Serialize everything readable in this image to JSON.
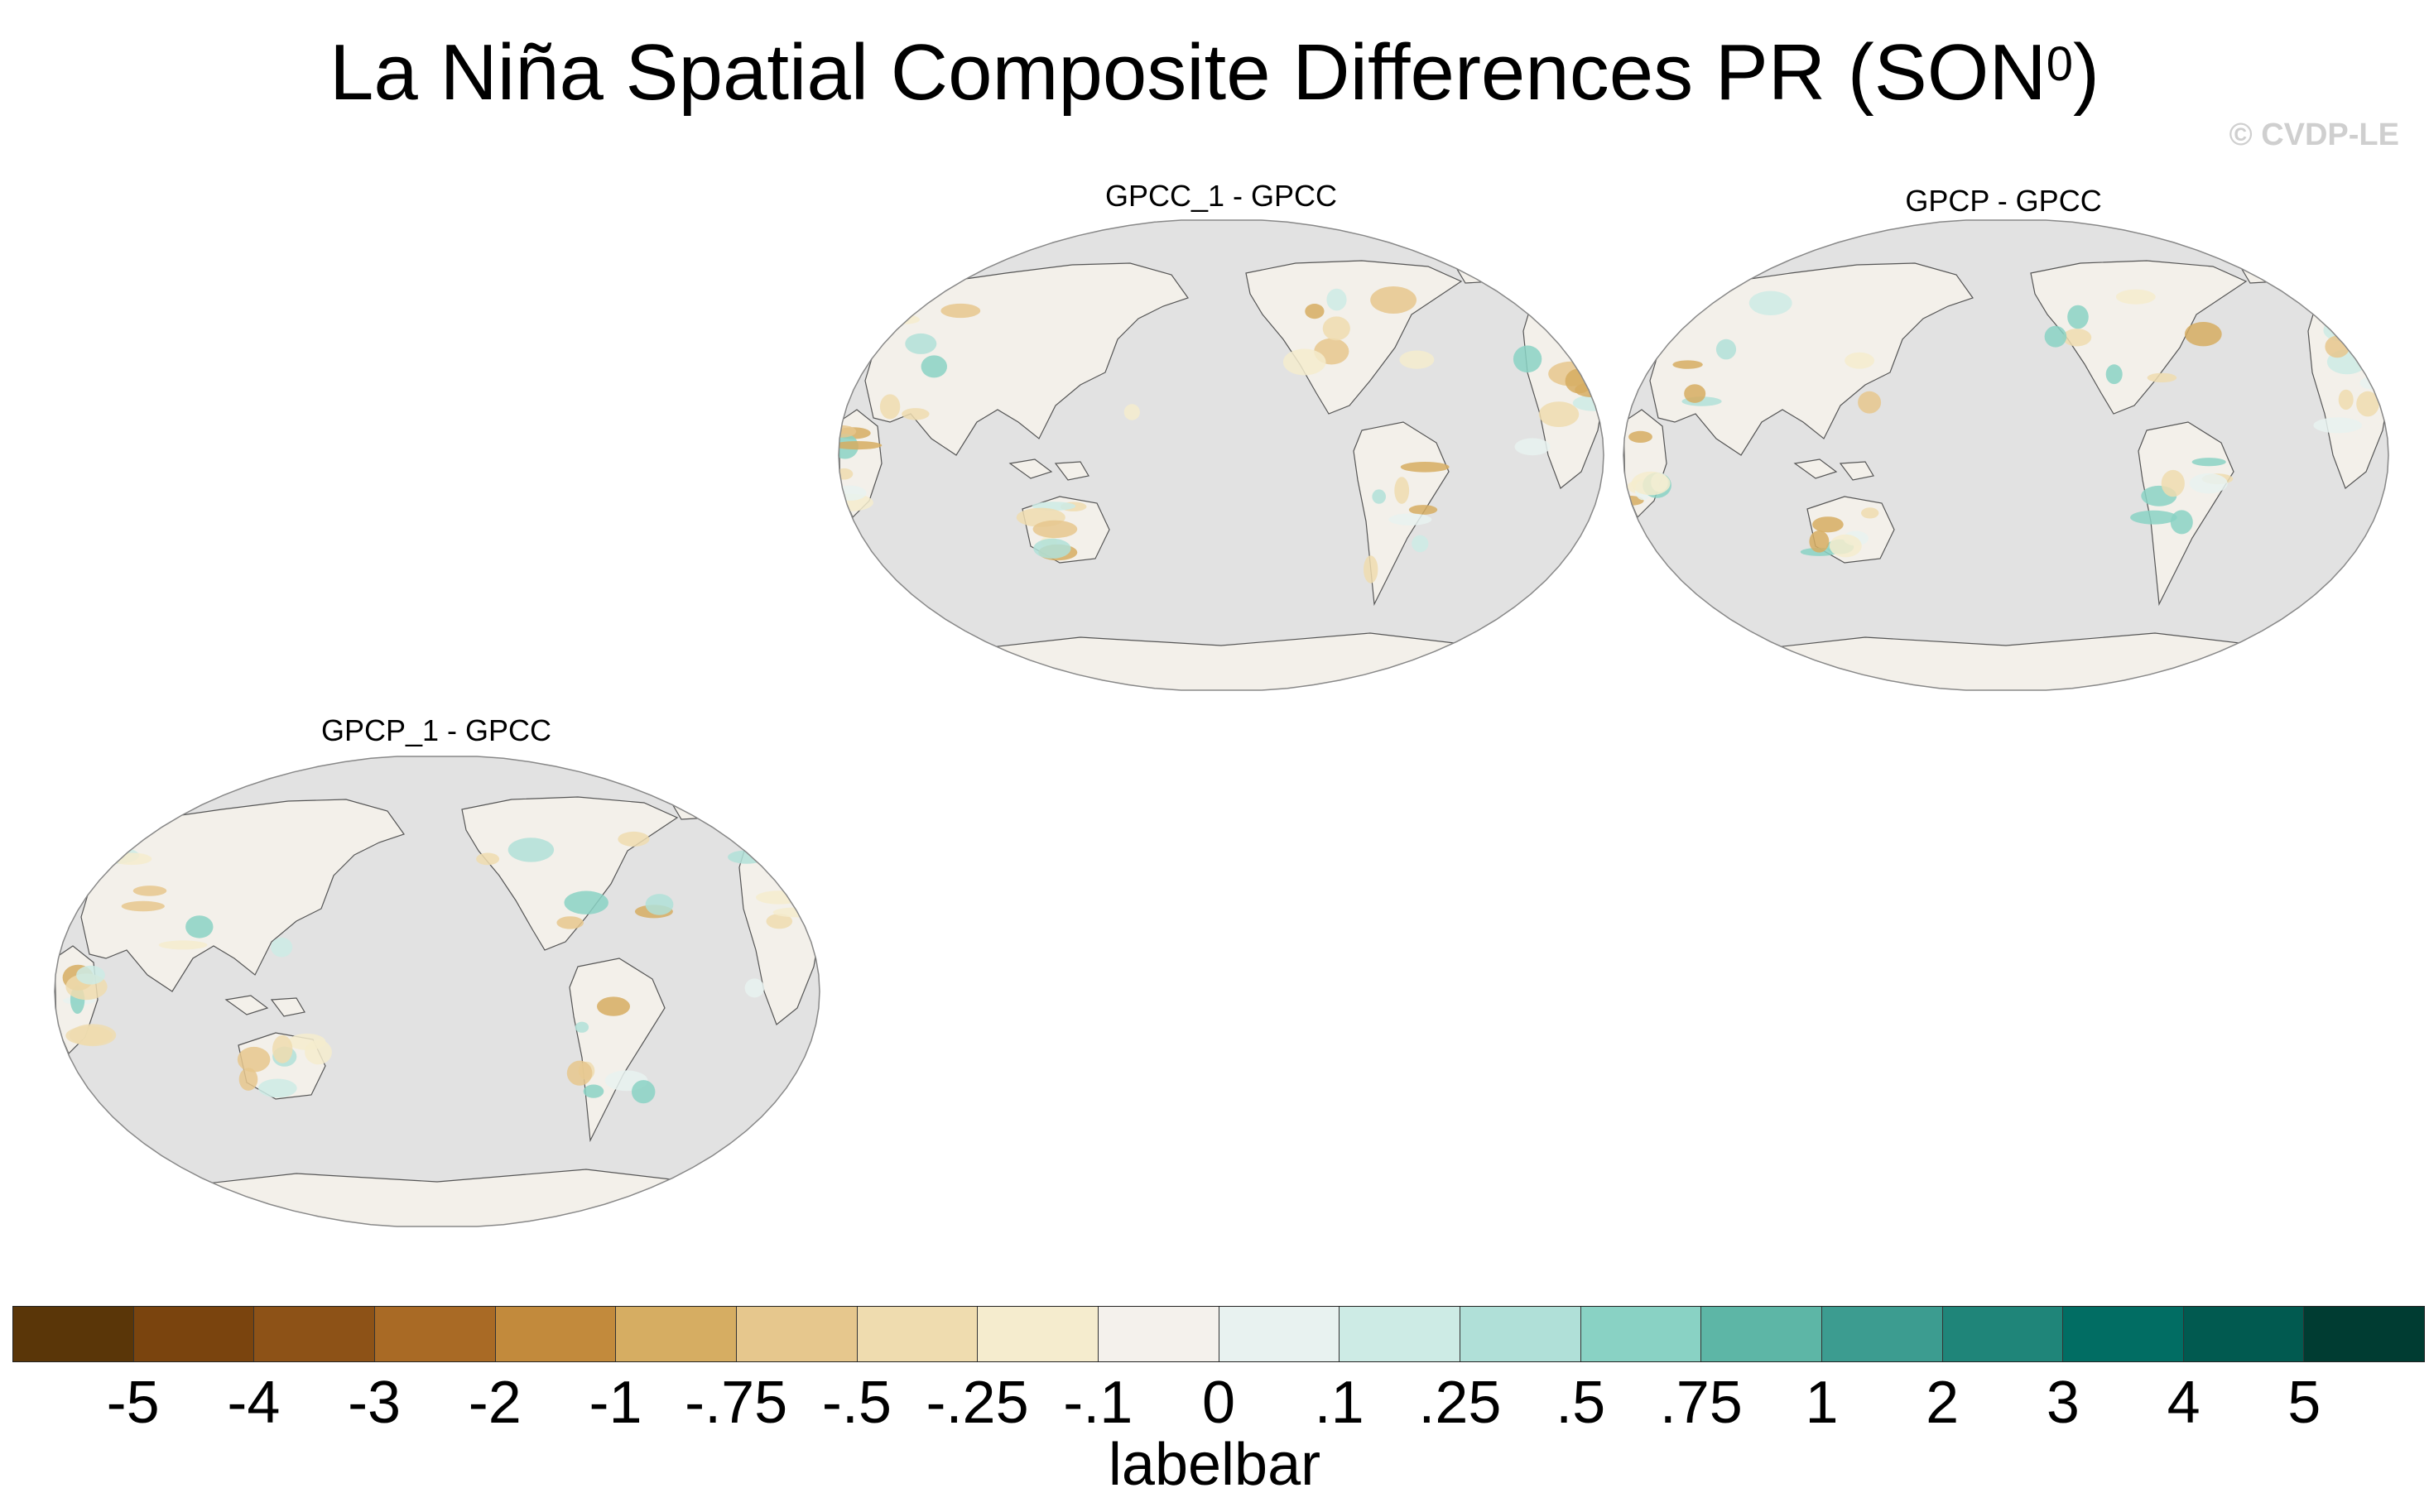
{
  "title": {
    "main": "La Niña Spatial Composite Differences PR (SON",
    "superscript": "0",
    "close": ")"
  },
  "watermark": "© CVDP-LE",
  "panels": [
    {
      "title": "GPCC_1 - GPCC"
    },
    {
      "title": "GPCP - GPCC"
    },
    {
      "title": "GPCP_1 - GPCC"
    }
  ],
  "colors": {
    "ocean": "#e2e2e2",
    "land": "#f3f0ea",
    "coast": "#555555",
    "map_border": "#888888"
  },
  "labelbar": {
    "title": "labelbar",
    "colors": [
      "#5a3608",
      "#7a440e",
      "#8d5217",
      "#a96a25",
      "#c28a3c",
      "#d6ad62",
      "#e6c78d",
      "#efdcaf",
      "#f5ecce",
      "#f4f1ec",
      "#e8f2f0",
      "#cdebe5",
      "#b0e0d8",
      "#89d2c4",
      "#5db6a6",
      "#3c9c90",
      "#1f8579",
      "#016d63",
      "#015a50",
      "#003c32"
    ],
    "ticks": [
      "-5",
      "-4",
      "-3",
      "-2",
      "-1",
      "-.75",
      "-.5",
      "-.25",
      "-.1",
      "0",
      ".1",
      ".25",
      ".5",
      ".75",
      "1",
      "2",
      "3",
      "4",
      "5"
    ]
  }
}
